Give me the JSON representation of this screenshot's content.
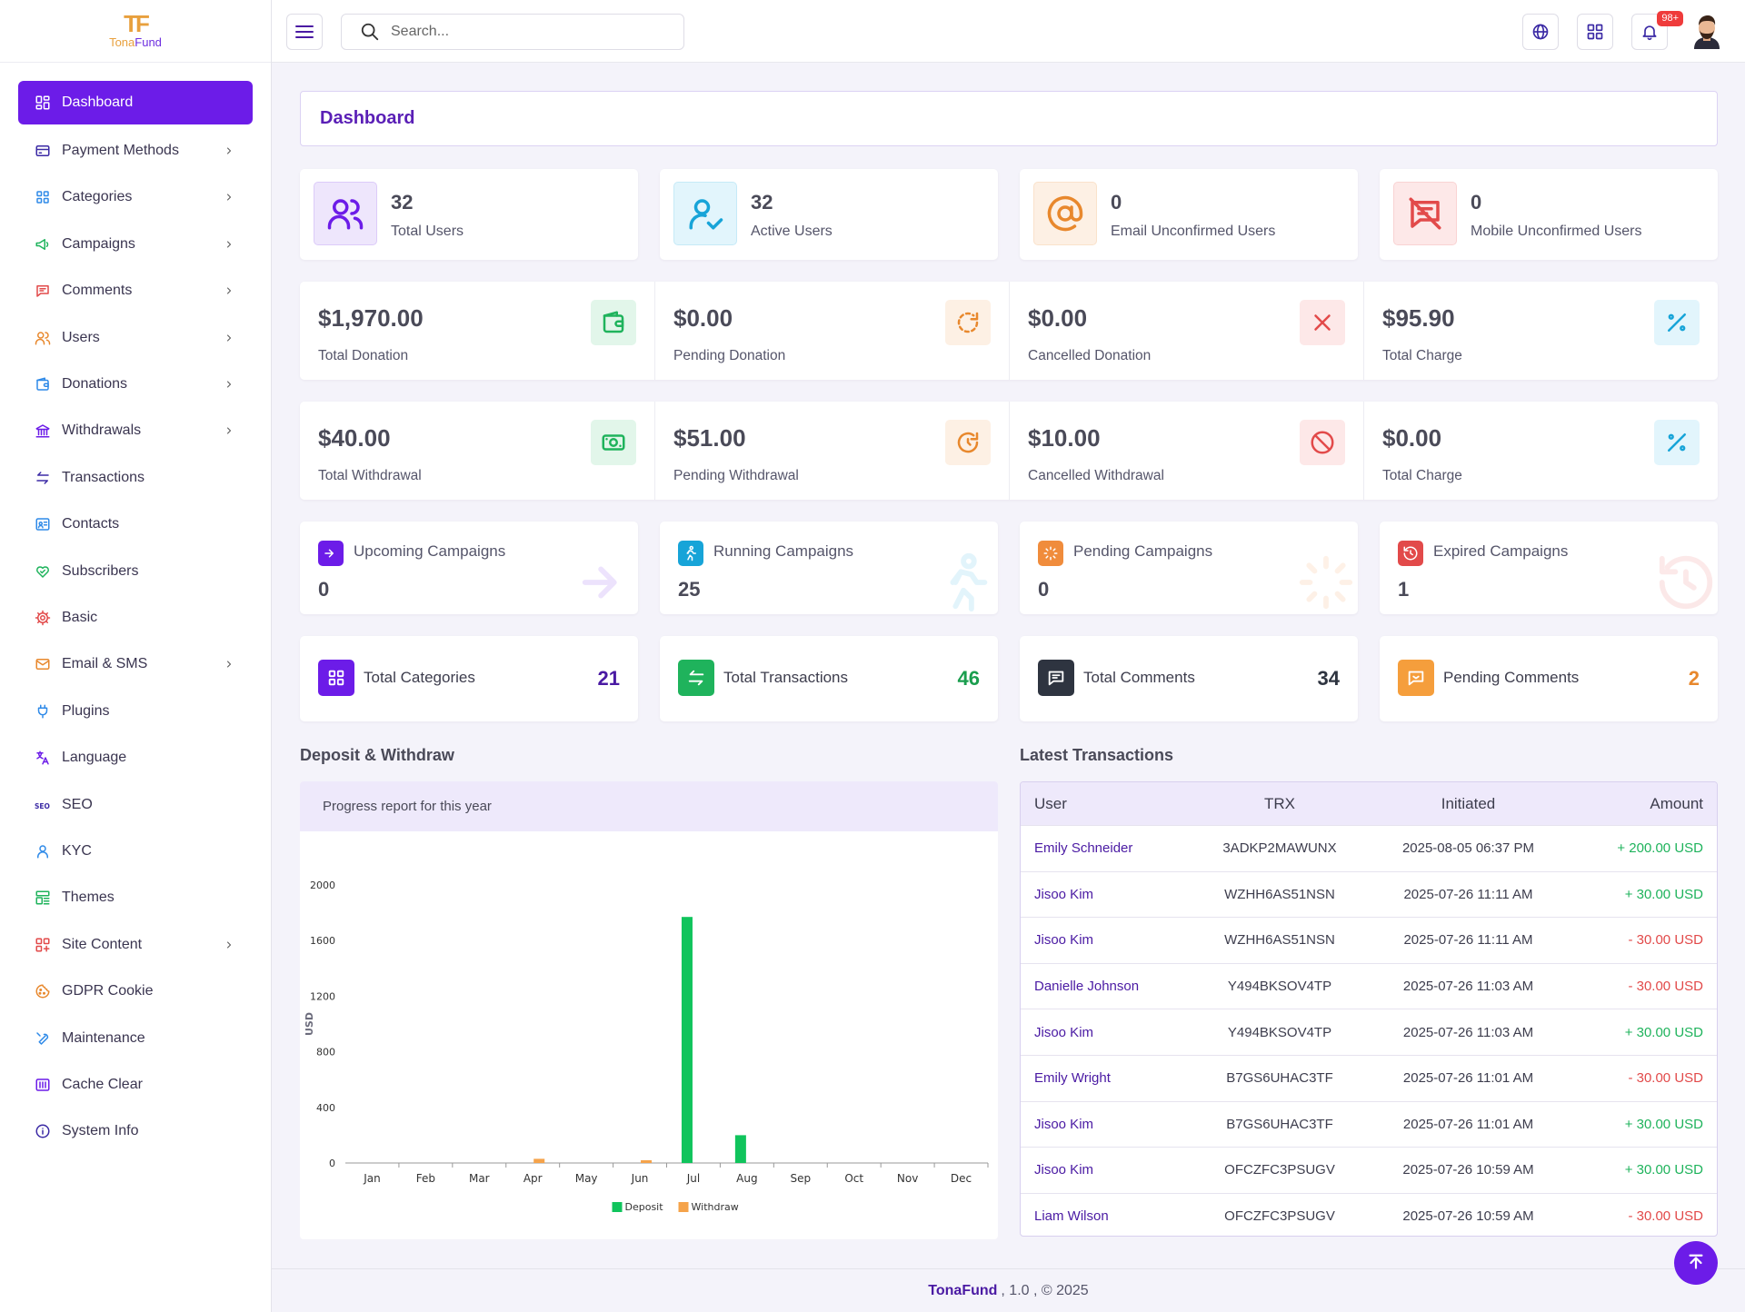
{
  "brand": {
    "mark": "TF",
    "name_a": "Tona",
    "name_b": "Fund"
  },
  "search": {
    "placeholder": "Search..."
  },
  "notifications": {
    "badge": "98+"
  },
  "sidebar": {
    "items": [
      {
        "label": "Dashboard",
        "icon": "dashboard-icon",
        "color": "#ffffff",
        "chevron": false,
        "active": true
      },
      {
        "label": "Payment Methods",
        "icon": "credit-card-icon",
        "color": "#3b2aa5",
        "chevron": true
      },
      {
        "label": "Categories",
        "icon": "grid-icon",
        "color": "#2f8ae8",
        "chevron": true
      },
      {
        "label": "Campaigns",
        "icon": "megaphone-icon",
        "color": "#1fb35c",
        "chevron": true
      },
      {
        "label": "Comments",
        "icon": "comment-icon",
        "color": "#e24a4a",
        "chevron": true
      },
      {
        "label": "Users",
        "icon": "users-icon",
        "color": "#e8882d",
        "chevron": true
      },
      {
        "label": "Donations",
        "icon": "wallet-icon",
        "color": "#2f8ae8",
        "chevron": true
      },
      {
        "label": "Withdrawals",
        "icon": "bank-icon",
        "color": "#6c1ce8",
        "chevron": true
      },
      {
        "label": "Transactions",
        "icon": "arrows-icon",
        "color": "#3b2aa5",
        "chevron": false
      },
      {
        "label": "Contacts",
        "icon": "contact-card-icon",
        "color": "#2f8ae8",
        "chevron": false
      },
      {
        "label": "Subscribers",
        "icon": "heart-hand-icon",
        "color": "#1fb35c",
        "chevron": false
      },
      {
        "label": "Basic",
        "icon": "gear-icon",
        "color": "#e24a4a",
        "chevron": false
      },
      {
        "label": "Email & SMS",
        "icon": "mail-icon",
        "color": "#e8882d",
        "chevron": true
      },
      {
        "label": "Plugins",
        "icon": "plug-icon",
        "color": "#2f8ae8",
        "chevron": false
      },
      {
        "label": "Language",
        "icon": "translate-icon",
        "color": "#6c1ce8",
        "chevron": false
      },
      {
        "label": "SEO",
        "icon": "seo-icon",
        "color": "#3b2aa5",
        "chevron": false
      },
      {
        "label": "KYC",
        "icon": "user-icon",
        "color": "#2f8ae8",
        "chevron": false
      },
      {
        "label": "Themes",
        "icon": "layout-icon",
        "color": "#1fb35c",
        "chevron": false
      },
      {
        "label": "Site Content",
        "icon": "apps-icon",
        "color": "#e24a4a",
        "chevron": true
      },
      {
        "label": "GDPR Cookie",
        "icon": "cookie-icon",
        "color": "#e8882d",
        "chevron": false
      },
      {
        "label": "Maintenance",
        "icon": "wrench-icon",
        "color": "#2f8ae8",
        "chevron": false
      },
      {
        "label": "Cache Clear",
        "icon": "cache-icon",
        "color": "#6c1ce8",
        "chevron": false
      },
      {
        "label": "System Info",
        "icon": "info-icon",
        "color": "#3b2aa5",
        "chevron": false
      }
    ]
  },
  "page_title": "Dashboard",
  "user_stats": [
    {
      "value": "32",
      "label": "Total Users",
      "icon": "users-icon",
      "color": "#6c1ce8",
      "bg": "#eee6fc"
    },
    {
      "value": "32",
      "label": "Active Users",
      "icon": "user-check-icon",
      "color": "#17a4d8",
      "bg": "#e2f5fc"
    },
    {
      "value": "0",
      "label": "Email Unconfirmed Users",
      "icon": "at-icon",
      "color": "#e8882d",
      "bg": "#fdf0e4"
    },
    {
      "value": "0",
      "label": "Mobile Unconfirmed Users",
      "icon": "message-off-icon",
      "color": "#e24a4a",
      "bg": "#fde8e8"
    }
  ],
  "amount_rows": [
    [
      {
        "value": "$1,970.00",
        "label": "Total Donation",
        "icon": "wallet-icon",
        "color": "#1fb35c",
        "bg": "#e2f6ea"
      },
      {
        "value": "$0.00",
        "label": "Pending Donation",
        "icon": "refresh-dashed-icon",
        "color": "#e8882d",
        "bg": "#fdf0e4"
      },
      {
        "value": "$0.00",
        "label": "Cancelled Donation",
        "icon": "close-icon",
        "color": "#e24a4a",
        "bg": "#fde8e8"
      },
      {
        "value": "$95.90",
        "label": "Total Charge",
        "icon": "percent-icon",
        "color": "#17a4d8",
        "bg": "#e2f5fc"
      }
    ],
    [
      {
        "value": "$40.00",
        "label": "Total Withdrawal",
        "icon": "cash-icon",
        "color": "#1fb35c",
        "bg": "#e2f6ea"
      },
      {
        "value": "$51.00",
        "label": "Pending Withdrawal",
        "icon": "refresh-clock-icon",
        "color": "#e8882d",
        "bg": "#fdf0e4"
      },
      {
        "value": "$10.00",
        "label": "Cancelled Withdrawal",
        "icon": "ban-icon",
        "color": "#e24a4a",
        "bg": "#fde8e8"
      },
      {
        "value": "$0.00",
        "label": "Total Charge",
        "icon": "percent-icon",
        "color": "#17a4d8",
        "bg": "#e2f5fc"
      }
    ]
  ],
  "campaign_stats": [
    {
      "label": "Upcoming Campaigns",
      "value": "0",
      "icon": "arrow-right-icon",
      "color": "#6c1ce8"
    },
    {
      "label": "Running Campaigns",
      "value": "25",
      "icon": "running-icon",
      "color": "#17a4d8"
    },
    {
      "label": "Pending Campaigns",
      "value": "0",
      "icon": "loader-icon",
      "color": "#f08c3c"
    },
    {
      "label": "Expired Campaigns",
      "value": "1",
      "icon": "history-icon",
      "color": "#e24a4a"
    }
  ],
  "summary_stats": [
    {
      "label": "Total Categories",
      "value": "21",
      "icon": "grid-icon",
      "color": "#6c1ce8",
      "value_color": "#4a1aa3"
    },
    {
      "label": "Total Transactions",
      "value": "46",
      "icon": "arrows-icon",
      "color": "#1fb35c",
      "value_color": "#1a9e4e"
    },
    {
      "label": "Total Comments",
      "value": "34",
      "icon": "comment-icon",
      "color": "#2e3440",
      "value_color": "#2e3440"
    },
    {
      "label": "Pending Comments",
      "value": "2",
      "icon": "comment-dots-icon",
      "color": "#f59e3c",
      "value_color": "#e8882d"
    }
  ],
  "deposit_section": {
    "title": "Deposit & Withdraw",
    "subtitle": "Progress report for this year"
  },
  "chart_data": {
    "type": "bar",
    "categories": [
      "Jan",
      "Feb",
      "Mar",
      "Apr",
      "May",
      "Jun",
      "Jul",
      "Aug",
      "Sep",
      "Oct",
      "Nov",
      "Dec"
    ],
    "series": [
      {
        "name": "Deposit",
        "color": "#10c45c",
        "values": [
          0,
          0,
          0,
          0,
          0,
          0,
          1770,
          200,
          0,
          0,
          0,
          0
        ]
      },
      {
        "name": "Withdraw",
        "color": "#f5a34a",
        "values": [
          0,
          0,
          0,
          30,
          0,
          20,
          0,
          0,
          0,
          0,
          0,
          0
        ]
      }
    ],
    "ylabel": "USD",
    "yticks": [
      "0",
      "400",
      "800",
      "1200",
      "1600",
      "2000"
    ],
    "ylim": [
      0,
      2000
    ],
    "legend_position": "bottom"
  },
  "transactions": {
    "title": "Latest Transactions",
    "columns": [
      "User",
      "TRX",
      "Initiated",
      "Amount"
    ],
    "rows": [
      {
        "user": "Emily Schneider",
        "trx": "3ADKP2MAWUNX",
        "initiated": "2025-08-05 06:37 PM",
        "amount": "+ 200.00 USD",
        "positive": true
      },
      {
        "user": "Jisoo Kim",
        "trx": "WZHH6AS51NSN",
        "initiated": "2025-07-26 11:11 AM",
        "amount": "+ 30.00 USD",
        "positive": true
      },
      {
        "user": "Jisoo Kim",
        "trx": "WZHH6AS51NSN",
        "initiated": "2025-07-26 11:11 AM",
        "amount": "- 30.00 USD",
        "positive": false
      },
      {
        "user": "Danielle Johnson",
        "trx": "Y494BKSOV4TP",
        "initiated": "2025-07-26 11:03 AM",
        "amount": "- 30.00 USD",
        "positive": false
      },
      {
        "user": "Jisoo Kim",
        "trx": "Y494BKSOV4TP",
        "initiated": "2025-07-26 11:03 AM",
        "amount": "+ 30.00 USD",
        "positive": true
      },
      {
        "user": "Emily Wright",
        "trx": "B7GS6UHAC3TF",
        "initiated": "2025-07-26 11:01 AM",
        "amount": "- 30.00 USD",
        "positive": false
      },
      {
        "user": "Jisoo Kim",
        "trx": "B7GS6UHAC3TF",
        "initiated": "2025-07-26 11:01 AM",
        "amount": "+ 30.00 USD",
        "positive": true
      },
      {
        "user": "Jisoo Kim",
        "trx": "OFCZFC3PSUGV",
        "initiated": "2025-07-26 10:59 AM",
        "amount": "+ 30.00 USD",
        "positive": true
      },
      {
        "user": "Liam Wilson",
        "trx": "OFCZFC3PSUGV",
        "initiated": "2025-07-26 10:59 AM",
        "amount": "- 30.00 USD",
        "positive": false
      }
    ]
  },
  "footer": {
    "brand": "TonaFund",
    "rest": ", 1.0 , © 2025"
  }
}
